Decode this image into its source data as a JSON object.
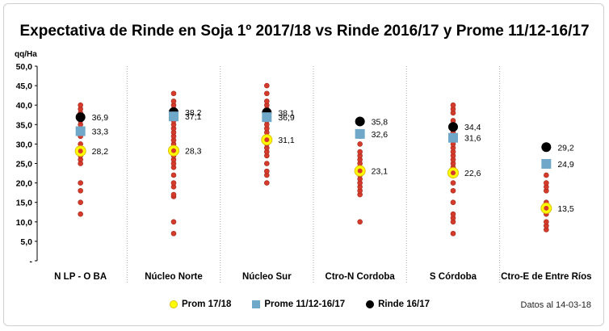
{
  "chart_data": {
    "type": "scatter",
    "title": "Expectativa de Rinde en Soja 1º 2017/18 vs Rinde 2016/17 y Prome 11/12-16/17",
    "ylabel": "qq/Ha",
    "xlabel": "",
    "ylim": [
      0,
      50
    ],
    "yticks": [
      "-",
      "5,0",
      "10,0",
      "15,0",
      "20,0",
      "25,0",
      "30,0",
      "35,0",
      "40,0",
      "45,0",
      "50,0"
    ],
    "grid": false,
    "legend_position": "bottom",
    "categories": [
      "N LP - O BA",
      "Núcleo Norte",
      "Núcleo Sur",
      "Ctro-N Cordoba",
      "S Córdoba",
      "Ctro-E de Entre Ríos"
    ],
    "series": [
      {
        "name": "Prom 17/18",
        "values": [
          28.2,
          28.3,
          31.1,
          23.1,
          22.6,
          13.5
        ],
        "labels": [
          "28,2",
          "28,3",
          "31,1",
          "23,1",
          "22,6",
          "13,5"
        ],
        "color": "#ffff00",
        "edge": "#e0c000"
      },
      {
        "name": "Prome 11/12-16/17",
        "values": [
          33.3,
          37.1,
          36.9,
          32.6,
          31.6,
          24.9
        ],
        "labels": [
          "33,3",
          "37,1",
          "36,9",
          "32,6",
          "31,6",
          "24,9"
        ],
        "color": "#6fa8c8"
      },
      {
        "name": "Rinde 16/17",
        "values": [
          36.9,
          38.2,
          38.1,
          35.8,
          34.4,
          29.2
        ],
        "labels": [
          "36,9",
          "38,2",
          "38,1",
          "35,8",
          "34,4",
          "29,2"
        ],
        "color": "#000000"
      }
    ],
    "observations": [
      [
        12,
        15,
        18,
        20,
        25,
        26,
        27,
        28,
        29,
        30,
        32,
        34,
        35,
        36,
        37,
        38,
        39,
        40
      ],
      [
        7,
        10,
        16.5,
        17,
        19,
        20,
        22,
        24,
        25,
        26,
        27,
        28,
        29,
        30,
        31,
        32,
        33,
        34,
        35,
        36,
        37,
        38,
        39,
        40,
        41,
        43
      ],
      [
        20,
        22,
        23,
        25,
        27,
        28,
        29,
        30,
        31,
        32,
        33,
        34,
        35,
        36,
        37,
        38,
        39,
        40,
        41,
        43,
        45
      ],
      [
        10,
        17,
        18,
        19,
        20,
        21,
        22,
        23,
        24,
        25,
        26,
        27,
        28,
        30,
        32,
        33
      ],
      [
        7,
        10,
        11,
        12,
        15,
        18,
        20,
        22,
        24,
        25,
        26,
        27,
        28,
        29,
        30,
        31,
        33,
        35,
        36,
        38,
        39,
        40
      ],
      [
        8,
        9,
        10,
        12,
        13,
        14,
        15,
        18,
        19,
        20,
        22
      ]
    ],
    "observation_color": "#d63a2a"
  },
  "footnote": "Datos al 14-03-18"
}
